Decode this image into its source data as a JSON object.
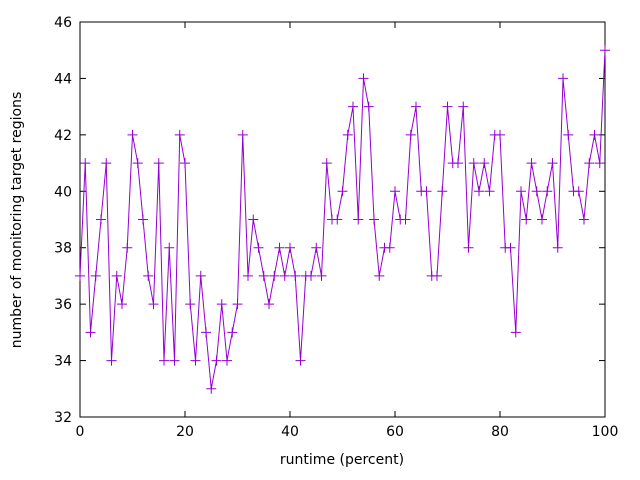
{
  "chart_data": {
    "type": "line",
    "title": "",
    "xlabel": "runtime (percent)",
    "ylabel": "number of monitoring target regions",
    "xlim": [
      0,
      100
    ],
    "ylim": [
      32,
      46
    ],
    "x_ticks": [
      0,
      20,
      40,
      60,
      80,
      100
    ],
    "y_ticks": [
      32,
      34,
      36,
      38,
      40,
      42,
      44,
      46
    ],
    "grid": false,
    "legend": "none",
    "background_color": "#ffffff",
    "border_color": "#000000",
    "text_color": "#000000",
    "series": [
      {
        "name": "monitoring target regions",
        "color": "#9400d3",
        "marker": "plus",
        "x_start": 0,
        "x_step": 1,
        "values": [
          37,
          41,
          35,
          37,
          39,
          41,
          34,
          37,
          36,
          38,
          42,
          41,
          39,
          37,
          36,
          41,
          34,
          38,
          34,
          42,
          41,
          36,
          34,
          37,
          35,
          33,
          34,
          36,
          34,
          35,
          36,
          42,
          37,
          39,
          38,
          37,
          36,
          37,
          38,
          37,
          38,
          37,
          34,
          37,
          37,
          38,
          37,
          41,
          39,
          39,
          40,
          42,
          43,
          39,
          44,
          43,
          39,
          37,
          38,
          38,
          40,
          39,
          39,
          42,
          43,
          40,
          40,
          37,
          37,
          40,
          43,
          41,
          41,
          43,
          38,
          41,
          40,
          41,
          40,
          42,
          42,
          38,
          38,
          35,
          40,
          39,
          41,
          40,
          39,
          40,
          41,
          38,
          44,
          42,
          40,
          40,
          39,
          41,
          42,
          41,
          45
        ]
      }
    ]
  }
}
